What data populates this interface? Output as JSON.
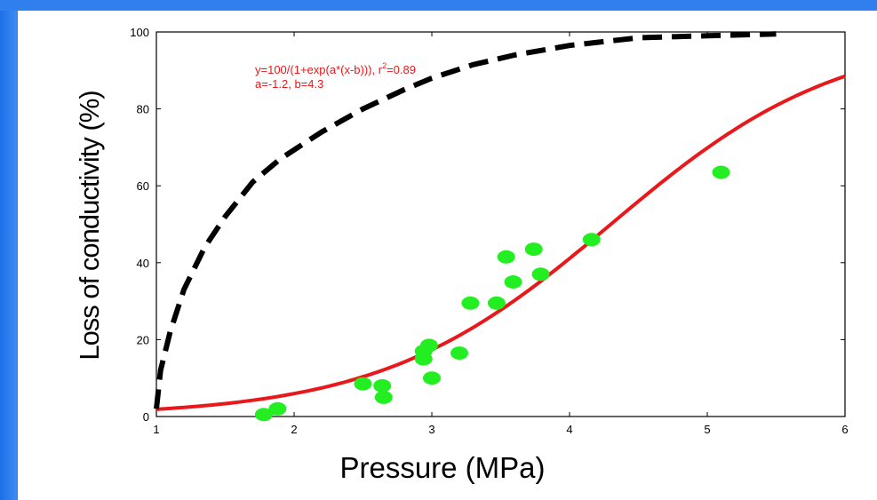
{
  "chart_data": {
    "type": "scatter",
    "xlabel": "Pressure (MPa)",
    "ylabel": "Loss of conductivity (%)",
    "xlim": [
      1,
      6
    ],
    "ylim": [
      0,
      100
    ],
    "x_ticks": [
      "1",
      "2",
      "3",
      "4",
      "5",
      "6"
    ],
    "y_ticks": [
      "0",
      "20",
      "40",
      "60",
      "80",
      "100"
    ],
    "annotation": {
      "line1": "y=100/(1+exp(a*(x-b))), r",
      "line1_sup": "2",
      "line1_end": "=0.89",
      "line2": "a=-1.2, b=4.3"
    },
    "points": [
      {
        "x": 1.78,
        "y": 0.5
      },
      {
        "x": 1.88,
        "y": 2
      },
      {
        "x": 2.5,
        "y": 8.5
      },
      {
        "x": 2.64,
        "y": 8
      },
      {
        "x": 2.65,
        "y": 5
      },
      {
        "x": 2.94,
        "y": 15
      },
      {
        "x": 2.94,
        "y": 17
      },
      {
        "x": 2.98,
        "y": 18.5
      },
      {
        "x": 3.0,
        "y": 10
      },
      {
        "x": 3.2,
        "y": 16.5
      },
      {
        "x": 3.28,
        "y": 29.5
      },
      {
        "x": 3.47,
        "y": 29.5
      },
      {
        "x": 3.54,
        "y": 41.5
      },
      {
        "x": 3.59,
        "y": 35
      },
      {
        "x": 3.74,
        "y": 43.5
      },
      {
        "x": 3.79,
        "y": 37
      },
      {
        "x": 4.16,
        "y": 46
      },
      {
        "x": 5.1,
        "y": 63.5
      }
    ],
    "series": [
      {
        "style": "solid",
        "color": "#e8181b",
        "model": "sigmoid",
        "params": {
          "a": -1.2,
          "b": 4.3
        }
      },
      {
        "style": "dashed",
        "color": "#000000",
        "model": "saturating",
        "points": [
          [
            1.0,
            2
          ],
          [
            1.03,
            12
          ],
          [
            1.1,
            22
          ],
          [
            1.2,
            33
          ],
          [
            1.35,
            44
          ],
          [
            1.5,
            52
          ],
          [
            1.7,
            61
          ],
          [
            1.9,
            67
          ],
          [
            2.2,
            74
          ],
          [
            2.5,
            80
          ],
          [
            2.8,
            85
          ],
          [
            3.0,
            88
          ],
          [
            3.3,
            91.5
          ],
          [
            3.6,
            94
          ],
          [
            4.0,
            96.5
          ],
          [
            4.5,
            98.5
          ],
          [
            5.0,
            99
          ],
          [
            5.5,
            99.5
          ]
        ]
      }
    ],
    "marker_color": "#22ee22"
  }
}
